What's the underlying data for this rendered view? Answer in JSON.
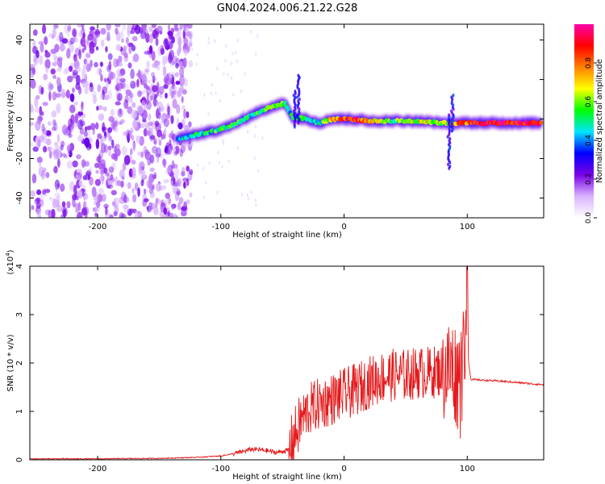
{
  "title": "GN04.2024.006.21.22.G28",
  "chart_data": [
    {
      "type": "heatmap",
      "xlabel": "Height of straight line (km)",
      "ylabel": "Frequency (Hz)",
      "xlim": [
        -255,
        162
      ],
      "ylim": [
        -50,
        48
      ],
      "xticks": [
        -200,
        -100,
        0,
        100
      ],
      "yticks": [
        40,
        20,
        0,
        -20,
        -40
      ],
      "colorbar": {
        "label": "Normalized spectral amplitude",
        "range": [
          0,
          1
        ],
        "ticks": [
          "0.0",
          "0.2",
          "0.4",
          "0.6",
          "0.8"
        ],
        "colors": [
          "#ffffff",
          "#d9b3ff",
          "#7a00e6",
          "#0000ff",
          "#00e5ff",
          "#00ff00",
          "#ffff00",
          "#ff8000",
          "#ff0000",
          "#ff00aa"
        ]
      },
      "noise_region_x": [
        -255,
        -128
      ],
      "ridge": [
        {
          "x": -135,
          "y": -10,
          "amp": 0.45
        },
        {
          "x": -120,
          "y": -8,
          "amp": 0.5
        },
        {
          "x": -105,
          "y": -6,
          "amp": 0.5
        },
        {
          "x": -90,
          "y": -3,
          "amp": 0.55
        },
        {
          "x": -75,
          "y": 2,
          "amp": 0.5
        },
        {
          "x": -60,
          "y": 6,
          "amp": 0.55
        },
        {
          "x": -48,
          "y": 8,
          "amp": 0.5
        },
        {
          "x": -42,
          "y": 1,
          "amp": 0.45
        },
        {
          "x": -30,
          "y": 0,
          "amp": 0.5
        },
        {
          "x": -20,
          "y": -2,
          "amp": 0.5
        },
        {
          "x": -10,
          "y": 0,
          "amp": 0.7
        },
        {
          "x": 5,
          "y": 0,
          "amp": 0.9
        },
        {
          "x": 20,
          "y": -1,
          "amp": 0.7
        },
        {
          "x": 40,
          "y": -1,
          "amp": 0.55
        },
        {
          "x": 60,
          "y": -1,
          "amp": 0.65
        },
        {
          "x": 80,
          "y": -2,
          "amp": 0.6
        },
        {
          "x": 92,
          "y": -2,
          "amp": 0.8
        },
        {
          "x": 110,
          "y": -2,
          "amp": 0.9
        },
        {
          "x": 130,
          "y": -2,
          "amp": 0.9
        },
        {
          "x": 160,
          "y": -2,
          "amp": 0.88
        }
      ]
    },
    {
      "type": "line",
      "xlabel": "Height of straight line (km)",
      "ylabel": "SNR (10 * v/v)",
      "y_multiplier": "(x10",
      "y_multiplier_exp": "4",
      "y_multiplier_close": ")",
      "xlim": [
        -255,
        162
      ],
      "ylim": [
        0,
        4
      ],
      "xticks": [
        -200,
        -100,
        0,
        100
      ],
      "yticks": [
        0,
        1,
        2,
        3,
        4
      ],
      "color": "#e41a1c",
      "series": [
        {
          "values": [
            [
              -255,
              0.02
            ],
            [
              -200,
              0.02
            ],
            [
              -150,
              0.03
            ],
            [
              -120,
              0.05
            ],
            [
              -100,
              0.08
            ],
            [
              -85,
              0.15
            ],
            [
              -75,
              0.22
            ],
            [
              -65,
              0.2
            ],
            [
              -55,
              0.15
            ],
            [
              -45,
              0.2
            ],
            [
              -40,
              0.5
            ],
            [
              -35,
              0.8
            ],
            [
              -30,
              1.0
            ],
            [
              -25,
              1.1
            ],
            [
              -20,
              1.15
            ],
            [
              -10,
              1.25
            ],
            [
              0,
              1.35
            ],
            [
              10,
              1.45
            ],
            [
              20,
              1.6
            ],
            [
              30,
              1.7
            ],
            [
              40,
              1.75
            ],
            [
              50,
              1.75
            ],
            [
              60,
              1.8
            ],
            [
              70,
              1.8
            ],
            [
              80,
              1.85
            ],
            [
              88,
              1.9
            ],
            [
              92,
              1.7
            ],
            [
              96,
              1.8
            ],
            [
              99,
              2.5
            ],
            [
              100,
              4.0
            ],
            [
              101,
              2.0
            ],
            [
              103,
              1.66
            ],
            [
              110,
              1.65
            ],
            [
              130,
              1.62
            ],
            [
              162,
              1.55
            ]
          ]
        }
      ]
    }
  ]
}
